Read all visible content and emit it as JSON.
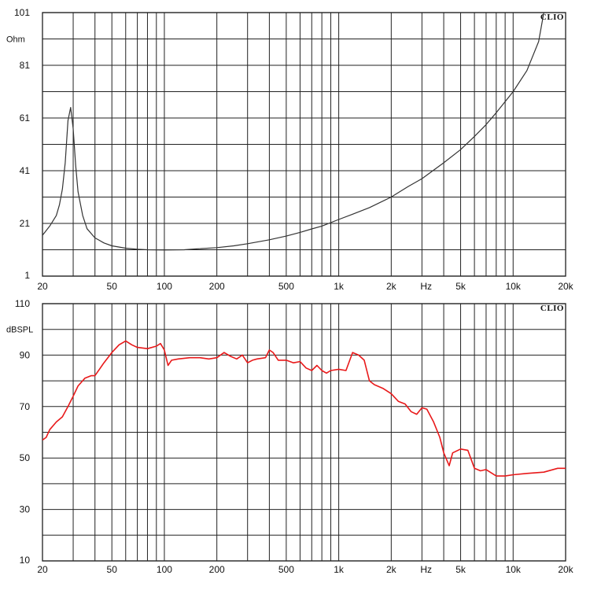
{
  "brand": "CLIO",
  "chart_data": [
    {
      "type": "line",
      "ylabel": "Ohm",
      "x_scale": "log",
      "xlim": [
        20,
        20000
      ],
      "ylim": [
        1,
        101
      ],
      "grid": true,
      "yticks": [
        "101",
        "81",
        "61",
        "41",
        "21",
        "1"
      ],
      "xticks": [
        "20",
        "50",
        "100",
        "200",
        "500",
        "1k",
        "2k",
        "Hz",
        "5k",
        "10k",
        "20k"
      ],
      "color": "#333333",
      "series": [
        {
          "x": [
            20,
            22,
            24,
            25,
            26,
            27,
            28,
            29,
            30,
            31,
            32,
            34,
            36,
            40,
            45,
            50,
            60,
            70,
            80,
            100,
            130,
            150,
            200,
            250,
            300,
            400,
            500,
            600,
            700,
            800,
            1000,
            1200,
            1500,
            2000,
            2500,
            3000,
            4000,
            5000,
            6000,
            7000,
            8000,
            10000,
            12000,
            14000,
            15000
          ],
          "y": [
            16.5,
            20,
            24,
            28,
            34,
            44,
            60,
            65,
            57,
            43,
            33,
            24,
            19,
            15.5,
            13.6,
            12.5,
            11.6,
            11.2,
            11,
            10.9,
            11,
            11.3,
            11.8,
            12.5,
            13.3,
            14.8,
            16.2,
            17.6,
            18.9,
            20,
            22.5,
            24.5,
            27,
            31,
            35,
            38,
            44,
            49,
            54,
            58.5,
            63,
            71,
            79,
            90,
            101
          ]
        }
      ]
    },
    {
      "type": "line",
      "ylabel": "dBSPL",
      "x_scale": "log",
      "xlim": [
        20,
        20000
      ],
      "ylim": [
        10,
        110
      ],
      "grid": true,
      "yticks": [
        "110",
        "90",
        "70",
        "50",
        "30",
        "10"
      ],
      "xticks": [
        "20",
        "50",
        "100",
        "200",
        "500",
        "1k",
        "2k",
        "Hz",
        "5k",
        "10k",
        "20k"
      ],
      "color": "#e8191a",
      "series": [
        {
          "x": [
            20,
            21,
            22,
            24,
            26,
            28,
            30,
            32,
            35,
            38,
            40,
            45,
            50,
            55,
            60,
            65,
            70,
            80,
            90,
            95,
            100,
            105,
            110,
            120,
            140,
            160,
            180,
            200,
            220,
            240,
            260,
            280,
            300,
            320,
            340,
            380,
            400,
            420,
            450,
            500,
            550,
            600,
            650,
            700,
            750,
            800,
            850,
            900,
            1000,
            1100,
            1200,
            1300,
            1400,
            1500,
            1600,
            1800,
            2000,
            2200,
            2400,
            2600,
            2800,
            3000,
            3200,
            3500,
            3800,
            4000,
            4300,
            4500,
            5000,
            5500,
            6000,
            6500,
            7000,
            8000,
            9000,
            10000,
            12000,
            15000,
            18000,
            20000
          ],
          "y": [
            57,
            58,
            61,
            64,
            66,
            70,
            74,
            78,
            81,
            82,
            82,
            87,
            91,
            94,
            95.5,
            94,
            93,
            92.5,
            93.5,
            94.5,
            92,
            86,
            88,
            88.5,
            89,
            89,
            88.5,
            89,
            91,
            89.5,
            88.5,
            90,
            87,
            88,
            88.5,
            89,
            92,
            91,
            88,
            88,
            87,
            87.5,
            85,
            84,
            86,
            84,
            83,
            84,
            84.5,
            84,
            91,
            90,
            88,
            80,
            78.5,
            77,
            75,
            72,
            71,
            68,
            67,
            69.5,
            69,
            64,
            58,
            52,
            47,
            52,
            53.5,
            53,
            46,
            45,
            45.5,
            43,
            43,
            43.5,
            44,
            44.5,
            46,
            46
          ]
        }
      ]
    }
  ]
}
